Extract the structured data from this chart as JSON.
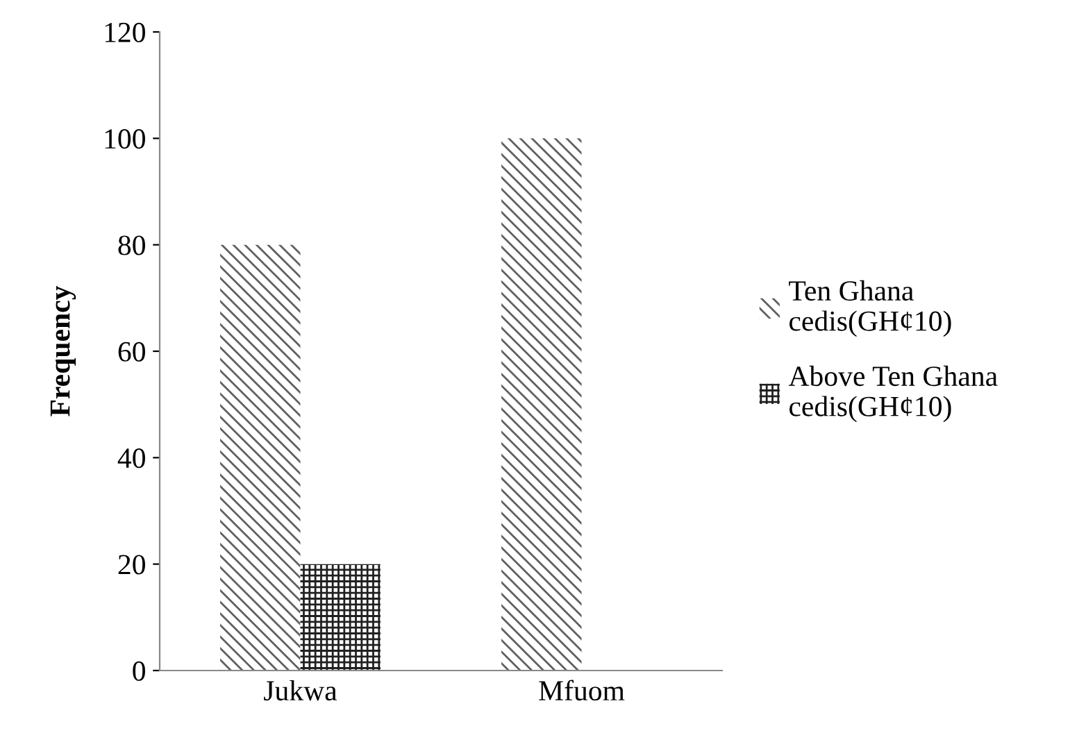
{
  "chart_data": {
    "type": "bar",
    "ylabel": "Frequency",
    "categories": [
      "Jukwa",
      "Mfuom"
    ],
    "series": [
      {
        "name": "Ten Ghana cedis(GH¢10)",
        "color": "#606060",
        "values": [
          80,
          100
        ]
      },
      {
        "name": "Above Ten Ghana cedis(GH¢10)",
        "color": "#202020",
        "values": [
          20,
          0
        ]
      }
    ],
    "ylim": [
      0,
      120
    ],
    "yticks": [
      0,
      20,
      40,
      60,
      80,
      100,
      120
    ],
    "grid": false,
    "legend": "right"
  }
}
